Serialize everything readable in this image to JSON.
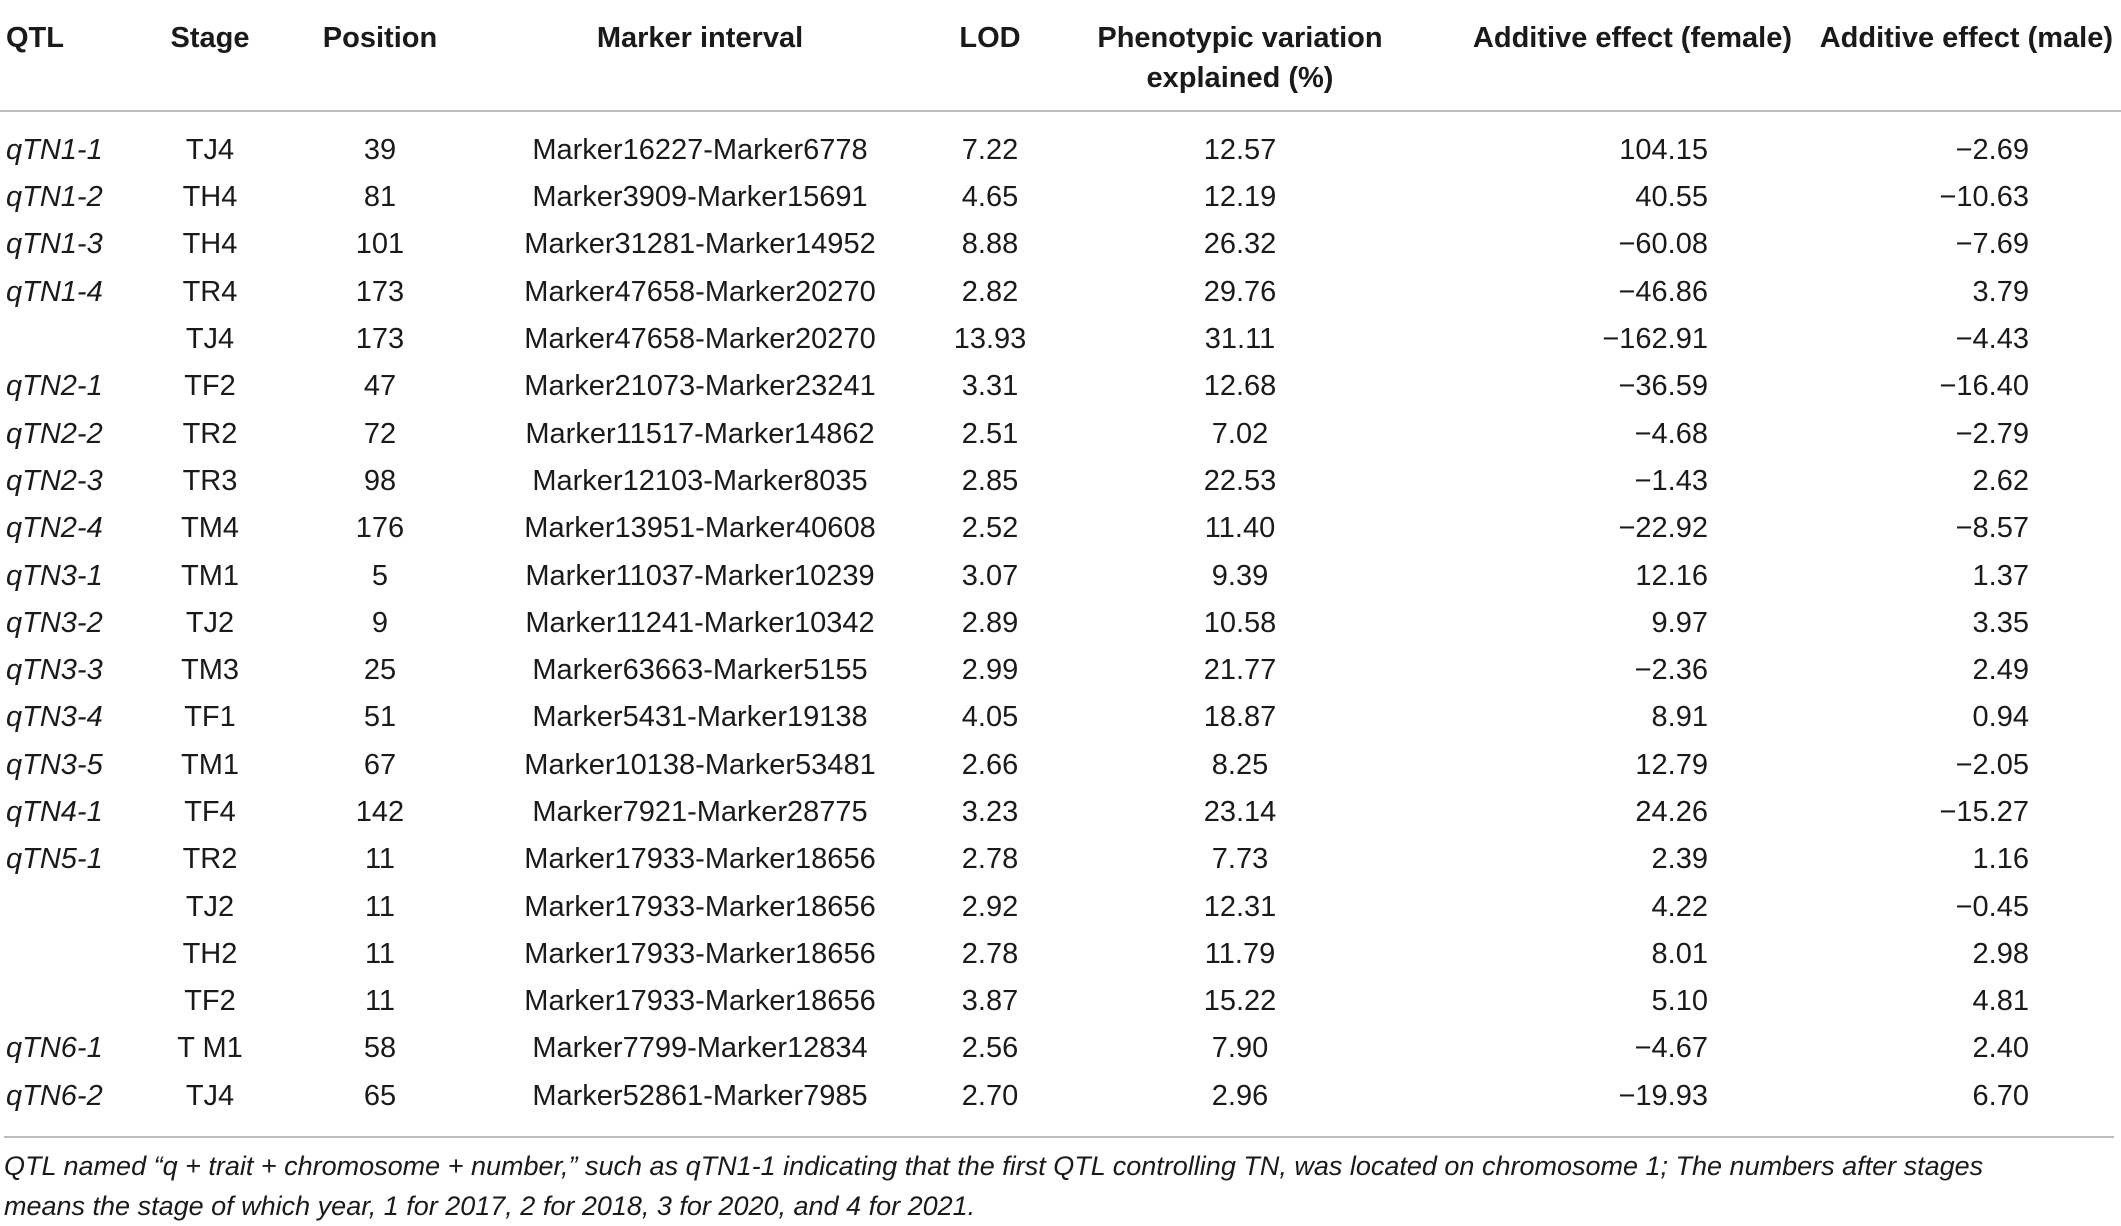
{
  "headers": {
    "qtl": "QTL",
    "stage": "Stage",
    "position": "Position",
    "marker": "Marker interval",
    "lod": "LOD",
    "pve_line1": "Phenotypic variation",
    "pve_line2": "explained (%)",
    "add_female": "Additive effect (female)",
    "add_male": "Additive effect (male)"
  },
  "rows": [
    {
      "qtl": "qTN1-1",
      "stage": "TJ4",
      "position": "39",
      "marker": "Marker16227-Marker6778",
      "lod": "7.22",
      "pve": "12.57",
      "af": "104.15",
      "am": "−2.69"
    },
    {
      "qtl": "qTN1-2",
      "stage": "TH4",
      "position": "81",
      "marker": "Marker3909-Marker15691",
      "lod": "4.65",
      "pve": "12.19",
      "af": "40.55",
      "am": "−10.63"
    },
    {
      "qtl": "qTN1-3",
      "stage": "TH4",
      "position": "101",
      "marker": "Marker31281-Marker14952",
      "lod": "8.88",
      "pve": "26.32",
      "af": "−60.08",
      "am": "−7.69"
    },
    {
      "qtl": "qTN1-4",
      "stage": "TR4",
      "position": "173",
      "marker": "Marker47658-Marker20270",
      "lod": "2.82",
      "pve": "29.76",
      "af": "−46.86",
      "am": "3.79"
    },
    {
      "qtl": "",
      "stage": "TJ4",
      "position": "173",
      "marker": "Marker47658-Marker20270",
      "lod": "13.93",
      "pve": "31.11",
      "af": "−162.91",
      "am": "−4.43"
    },
    {
      "qtl": "qTN2-1",
      "stage": "TF2",
      "position": "47",
      "marker": "Marker21073-Marker23241",
      "lod": "3.31",
      "pve": "12.68",
      "af": "−36.59",
      "am": "−16.40"
    },
    {
      "qtl": "qTN2-2",
      "stage": "TR2",
      "position": "72",
      "marker": "Marker11517-Marker14862",
      "lod": "2.51",
      "pve": "7.02",
      "af": "−4.68",
      "am": "−2.79"
    },
    {
      "qtl": "qTN2-3",
      "stage": "TR3",
      "position": "98",
      "marker": "Marker12103-Marker8035",
      "lod": "2.85",
      "pve": "22.53",
      "af": "−1.43",
      "am": "2.62"
    },
    {
      "qtl": "qTN2-4",
      "stage": "TM4",
      "position": "176",
      "marker": "Marker13951-Marker40608",
      "lod": "2.52",
      "pve": "11.40",
      "af": "−22.92",
      "am": "−8.57"
    },
    {
      "qtl": "qTN3-1",
      "stage": "TM1",
      "position": "5",
      "marker": "Marker11037-Marker10239",
      "lod": "3.07",
      "pve": "9.39",
      "af": "12.16",
      "am": "1.37"
    },
    {
      "qtl": "qTN3-2",
      "stage": "TJ2",
      "position": "9",
      "marker": "Marker11241-Marker10342",
      "lod": "2.89",
      "pve": "10.58",
      "af": "9.97",
      "am": "3.35"
    },
    {
      "qtl": "qTN3-3",
      "stage": "TM3",
      "position": "25",
      "marker": "Marker63663-Marker5155",
      "lod": "2.99",
      "pve": "21.77",
      "af": "−2.36",
      "am": "2.49"
    },
    {
      "qtl": "qTN3-4",
      "stage": "TF1",
      "position": "51",
      "marker": "Marker5431-Marker19138",
      "lod": "4.05",
      "pve": "18.87",
      "af": "8.91",
      "am": "0.94"
    },
    {
      "qtl": "qTN3-5",
      "stage": "TM1",
      "position": "67",
      "marker": "Marker10138-Marker53481",
      "lod": "2.66",
      "pve": "8.25",
      "af": "12.79",
      "am": "−2.05"
    },
    {
      "qtl": "qTN4-1",
      "stage": "TF4",
      "position": "142",
      "marker": "Marker7921-Marker28775",
      "lod": "3.23",
      "pve": "23.14",
      "af": "24.26",
      "am": "−15.27"
    },
    {
      "qtl": "qTN5-1",
      "stage": "TR2",
      "position": "11",
      "marker": "Marker17933-Marker18656",
      "lod": "2.78",
      "pve": "7.73",
      "af": "2.39",
      "am": "1.16"
    },
    {
      "qtl": "",
      "stage": "TJ2",
      "position": "11",
      "marker": "Marker17933-Marker18656",
      "lod": "2.92",
      "pve": "12.31",
      "af": "4.22",
      "am": "−0.45"
    },
    {
      "qtl": "",
      "stage": "TH2",
      "position": "11",
      "marker": "Marker17933-Marker18656",
      "lod": "2.78",
      "pve": "11.79",
      "af": "8.01",
      "am": "2.98"
    },
    {
      "qtl": "",
      "stage": "TF2",
      "position": "11",
      "marker": "Marker17933-Marker18656",
      "lod": "3.87",
      "pve": "15.22",
      "af": "5.10",
      "am": "4.81"
    },
    {
      "qtl": "qTN6-1",
      "stage": "T M1",
      "position": "58",
      "marker": "Marker7799-Marker12834",
      "lod": "2.56",
      "pve": "7.90",
      "af": "−4.67",
      "am": "2.40"
    },
    {
      "qtl": "qTN6-2",
      "stage": "TJ4",
      "position": "65",
      "marker": "Marker52861-Marker7985",
      "lod": "2.70",
      "pve": "2.96",
      "af": "−19.93",
      "am": "6.70"
    }
  ],
  "footnote": {
    "line1": "QTL named “q + trait + chromosome + number,” such as qTN1-1 indicating that the first QTL controlling TN, was located on chromosome 1; The numbers after stages",
    "line2": "means the stage of which year, 1 for 2017, 2 for 2018, 3 for 2020, and 4 for 2021."
  }
}
